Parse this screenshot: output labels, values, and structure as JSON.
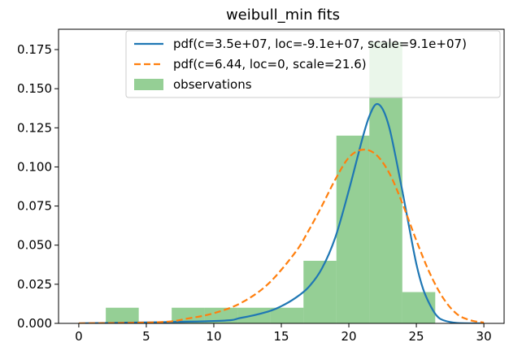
{
  "chart_data": {
    "type": "bar",
    "title": "weibull_min fits",
    "xlabel": "",
    "ylabel": "",
    "xlim": [
      -1.5,
      31.5
    ],
    "ylim": [
      0,
      0.188
    ],
    "xticks": [
      0,
      5,
      10,
      15,
      20,
      25,
      30
    ],
    "yticks": [
      0.0,
      0.025,
      0.05,
      0.075,
      0.1,
      0.125,
      0.15,
      0.175
    ],
    "xtick_labels": [
      "0",
      "5",
      "10",
      "15",
      "20",
      "25",
      "30"
    ],
    "ytick_labels": [
      "0.000",
      "0.025",
      "0.050",
      "0.075",
      "0.100",
      "0.125",
      "0.150",
      "0.175"
    ],
    "legend_position": "top-right",
    "histogram": {
      "name": "observations",
      "color": "#2ca02c",
      "bin_edges": [
        2.0,
        4.44,
        6.88,
        9.32,
        11.76,
        14.2,
        16.64,
        19.08,
        21.52,
        23.96,
        26.4
      ],
      "values": [
        0.01,
        0.0,
        0.01,
        0.01,
        0.01,
        0.01,
        0.04,
        0.12,
        0.18,
        0.02
      ]
    },
    "series": [
      {
        "name": "pdf(c=3.5e+07, loc=-9.1e+07, scale=9.1e+07)",
        "color": "#1f77b4",
        "style": "solid",
        "x": [
          0,
          10,
          12,
          14,
          15,
          16,
          17,
          18,
          19,
          20,
          21,
          21.5,
          22,
          22.5,
          23,
          23.5,
          24,
          24.5,
          25,
          25.5,
          26,
          26.5,
          27,
          28,
          30
        ],
        "y": [
          0.0,
          0.0015,
          0.0035,
          0.0075,
          0.011,
          0.016,
          0.023,
          0.035,
          0.055,
          0.085,
          0.118,
          0.132,
          0.14,
          0.137,
          0.125,
          0.105,
          0.083,
          0.06,
          0.038,
          0.022,
          0.012,
          0.005,
          0.002,
          0.0003,
          0.0
        ]
      },
      {
        "name": "pdf(c=6.44, loc=0, scale=21.6)",
        "color": "#ff7f0e",
        "style": "dashed",
        "x": [
          0,
          6,
          8,
          10,
          12,
          14,
          16,
          17,
          18,
          19,
          20,
          21,
          22,
          23,
          24,
          25,
          26,
          27,
          28,
          29,
          30
        ],
        "y": [
          0.0,
          0.0008,
          0.003,
          0.0065,
          0.013,
          0.025,
          0.045,
          0.059,
          0.075,
          0.092,
          0.106,
          0.111,
          0.108,
          0.096,
          0.076,
          0.053,
          0.032,
          0.016,
          0.006,
          0.002,
          0.0005
        ]
      }
    ]
  }
}
